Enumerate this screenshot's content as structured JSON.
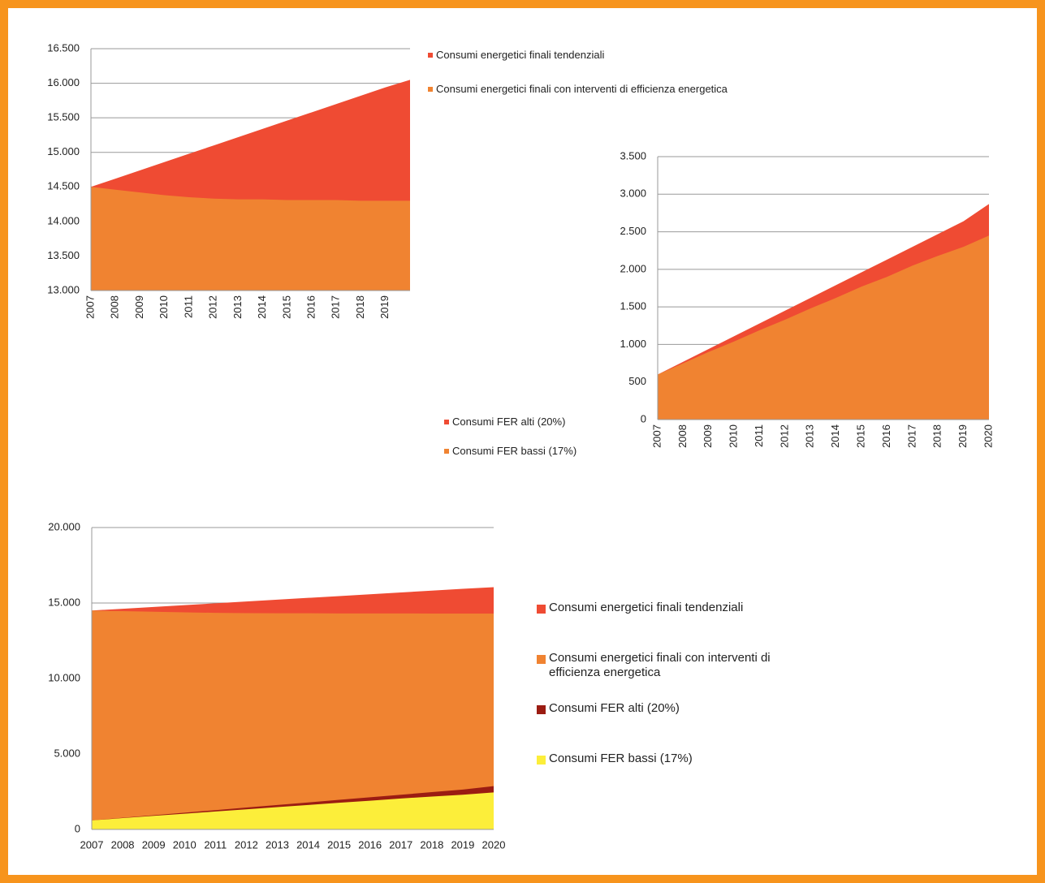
{
  "chart_data": [
    {
      "type": "area",
      "categories": [
        "2007",
        "2008",
        "2009",
        "2010",
        "2011",
        "2012",
        "2013",
        "2014",
        "2015",
        "2016",
        "2017",
        "2018",
        "2019",
        null
      ],
      "series": [
        {
          "name": "Consumi energetici finali tendenziali",
          "color": "#ef4b33",
          "values": [
            14500,
            14620,
            14740,
            14860,
            14980,
            15100,
            15220,
            15340,
            15460,
            15580,
            15700,
            15820,
            15940,
            16050
          ]
        },
        {
          "name": "Consumi energetici finali con interventi di efficienza energetica",
          "color": "#f08331",
          "values": [
            14500,
            14460,
            14420,
            14380,
            14350,
            14330,
            14320,
            14320,
            14310,
            14310,
            14310,
            14300,
            14300,
            14300
          ]
        }
      ],
      "ylim": [
        13000,
        16500
      ],
      "yticks": [
        {
          "value": 13000,
          "label": "13.000"
        },
        {
          "value": 13500,
          "label": "13.500"
        },
        {
          "value": 14000,
          "label": "14.000"
        },
        {
          "value": 14500,
          "label": "14.500"
        },
        {
          "value": 15000,
          "label": "15.000"
        },
        {
          "value": 15500,
          "label": "15.500"
        },
        {
          "value": 16000,
          "label": "16.000"
        },
        {
          "value": 16500,
          "label": "16.500"
        }
      ],
      "grid": true
    },
    {
      "type": "area",
      "categories": [
        "2007",
        "2008",
        "2009",
        "2010",
        "2011",
        "2012",
        "2013",
        "2014",
        "2015",
        "2016",
        "2017",
        "2018",
        "2019",
        "2020"
      ],
      "series": [
        {
          "name": "Consumi FER alti (20%)",
          "color": "#ef4b33",
          "values": [
            600,
            770,
            940,
            1110,
            1280,
            1450,
            1620,
            1790,
            1960,
            2130,
            2300,
            2470,
            2640,
            2870
          ]
        },
        {
          "name": "Consumi FER bassi (17%)",
          "color": "#f08331",
          "values": [
            600,
            750,
            900,
            1040,
            1190,
            1330,
            1480,
            1620,
            1770,
            1900,
            2050,
            2180,
            2300,
            2450
          ]
        }
      ],
      "ylim": [
        0,
        3500
      ],
      "yticks": [
        0,
        500,
        {
          "value": 1000,
          "label": "1.000"
        },
        {
          "value": 1500,
          "label": "1.500"
        },
        {
          "value": 2000,
          "label": "2.000"
        },
        {
          "value": 2500,
          "label": "2.500"
        },
        {
          "value": 3000,
          "label": "3.000"
        },
        {
          "value": 3500,
          "label": "3.500"
        }
      ],
      "grid": true
    },
    {
      "type": "area",
      "categories": [
        "2007",
        "2008",
        "2009",
        "2010",
        "2011",
        "2012",
        "2013",
        "2014",
        "2015",
        "2016",
        "2017",
        "2018",
        "2019",
        "2020"
      ],
      "series": [
        {
          "name": "Consumi energetici finali tendenziali",
          "color": "#ef4b33",
          "values": [
            14500,
            14620,
            14740,
            14860,
            14980,
            15100,
            15220,
            15340,
            15460,
            15580,
            15700,
            15820,
            15940,
            16050
          ]
        },
        {
          "name": "Consumi energetici finali con interventi di efficienza energetica",
          "color": "#f08331",
          "values": [
            14500,
            14460,
            14420,
            14380,
            14350,
            14330,
            14320,
            14320,
            14310,
            14310,
            14310,
            14300,
            14300,
            14300
          ]
        },
        {
          "name": "Consumi FER alti (20%)",
          "color": "#9b1c12",
          "values": [
            600,
            770,
            940,
            1110,
            1280,
            1450,
            1620,
            1790,
            1960,
            2130,
            2300,
            2470,
            2640,
            2870
          ]
        },
        {
          "name": "Consumi FER bassi (17%)",
          "color": "#fcee3a",
          "values": [
            600,
            750,
            900,
            1040,
            1190,
            1330,
            1480,
            1620,
            1770,
            1900,
            2050,
            2180,
            2300,
            2450
          ]
        }
      ],
      "ylim": [
        0,
        20000
      ],
      "yticks": [
        0,
        {
          "value": 5000,
          "label": "5.000"
        },
        {
          "value": 10000,
          "label": "10.000"
        },
        {
          "value": 15000,
          "label": "15.000"
        },
        {
          "value": 20000,
          "label": "20.000"
        }
      ],
      "grid": true
    }
  ]
}
